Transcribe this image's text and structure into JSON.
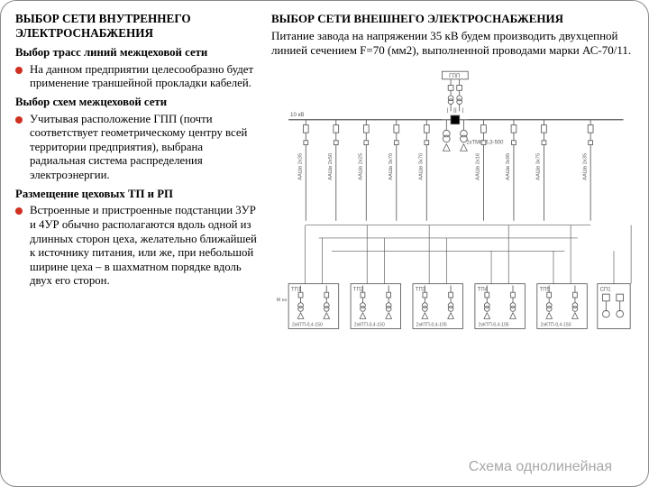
{
  "left": {
    "h1": "ВЫБОР СЕТИ ВНУТРЕННЕГО ЭЛЕКТРОСНАБЖЕНИЯ",
    "s1_title": "Выбор трасс линий межцеховой сети",
    "s1_b1": "На данном предприятии целесообразно будет применение траншейной прокладки кабелей.",
    "s2_title": "Выбор схем межцеховой сети",
    "s2_b1": "Учитывая расположение ГПП (почти соответствует геометрическому центру всей территории предприятия), выбрана радиальная система распределения электроэнергии.",
    "s3_title": "Размещение цеховых ТП и РП",
    "s3_b1": "Встроенные и пристроенные подстанции 3УР и 4УР обычно располагаются вдоль одной из длинных сторон цеха, желательно ближайшей к источнику питания, или же, при небольшой ширине цеха – в шахматном порядке вдоль двух его сторон."
  },
  "right": {
    "h1": "ВЫБОР СЕТИ ВНЕШНЕГО ЭЛЕКТРОСНАБЖЕНИЯ",
    "text": "Питание завода на напряжении 35 кВ будем производить двухцепной линией сечением F=70 (мм2), выполненной проводами марки АС-70/11."
  },
  "caption": "Схема однолинейная",
  "diagram": {
    "stroke": "#5a5a5a",
    "text": "#5a5a5a",
    "bg": "#ffffff",
    "top_label": "ГПП",
    "bus_label_left": "10 кВ",
    "trans_label": "2хТМН-6,3-500",
    "cable_labels": [
      "ААШв  2х35",
      "ААШв  2х50",
      "ААШв  2х25",
      "ААШв  3х70",
      "ААШв  3х70",
      "ААШв  2х16",
      "ААШв  3х95",
      "ААШв  3х75",
      "ААШв  2х35"
    ],
    "tp_boxes": [
      "ТП1",
      "ТП2",
      "ТП3",
      "ТП4",
      "ТП5",
      "СП1"
    ],
    "tp_sub": [
      "2хКТП-0,4-150",
      "2хКТП-0,4-150",
      "2хКТП-0,4-105",
      "2хКТП-0,4-105",
      "2хКТП-0,4-150",
      ""
    ],
    "m_lbl": "М нэ",
    "colors": {
      "accent": "#000000"
    }
  }
}
